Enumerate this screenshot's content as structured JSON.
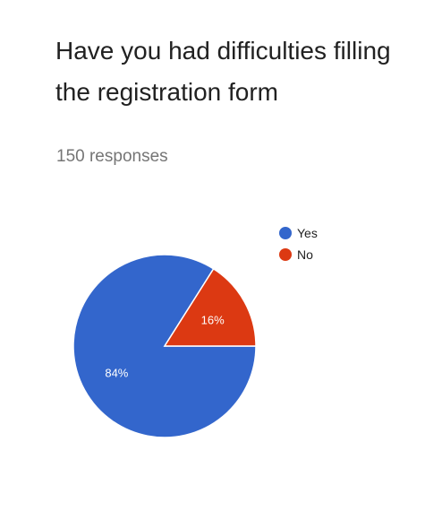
{
  "form": {
    "question": "Have you had difficulties filling the registration form",
    "responses": "150 responses"
  },
  "chart_data": {
    "type": "pie",
    "categories": [
      "Yes",
      "No"
    ],
    "values": [
      84,
      16
    ],
    "labels": [
      "84%",
      "16%"
    ],
    "colors": [
      "#3366cc",
      "#dc3912"
    ],
    "legend_placement": "top-right"
  }
}
